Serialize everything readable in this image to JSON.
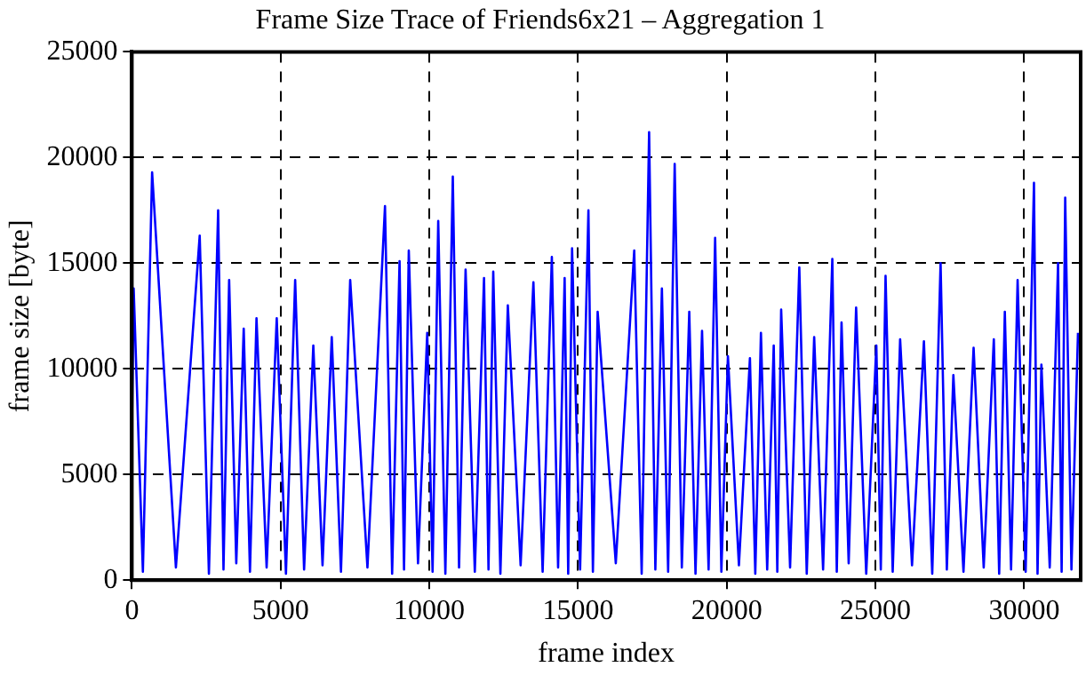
{
  "chart_data": {
    "type": "line",
    "title": "Frame Size Trace of Friends6x21 – Aggregation 1",
    "xlabel": "frame index",
    "ylabel": "frame size [byte]",
    "xlim": [
      0,
      31900
    ],
    "ylim": [
      0,
      25000
    ],
    "xticks": [
      0,
      5000,
      10000,
      15000,
      20000,
      25000,
      30000
    ],
    "yticks": [
      0,
      5000,
      10000,
      15000,
      20000,
      25000
    ],
    "grid": true,
    "legend": false,
    "marker": "none",
    "line_style": "solid",
    "series": [
      {
        "color": "#0000ff",
        "x": [
          0,
          60,
          370,
          680,
          1480,
          2280,
          2590,
          2900,
          3080,
          3270,
          3510,
          3760,
          3970,
          4190,
          4530,
          4870,
          5180,
          5490,
          5790,
          6100,
          6410,
          6720,
          7030,
          7340,
          7920,
          8510,
          8750,
          9000,
          9150,
          9310,
          9620,
          9930,
          10110,
          10300,
          10540,
          10790,
          11000,
          11220,
          11530,
          11840,
          11990,
          12150,
          12390,
          12640,
          13070,
          13500,
          13810,
          14120,
          14330,
          14550,
          14670,
          14800,
          15070,
          15350,
          15500,
          15660,
          16270,
          16890,
          17140,
          17390,
          17600,
          17820,
          18030,
          18250,
          18490,
          18740,
          18950,
          19170,
          19390,
          19610,
          19820,
          20040,
          20410,
          20780,
          20960,
          21150,
          21360,
          21580,
          21700,
          21830,
          22130,
          22440,
          22690,
          22940,
          23240,
          23550,
          23700,
          23860,
          24100,
          24350,
          24690,
          25030,
          25180,
          25340,
          25580,
          25830,
          26230,
          26630,
          26910,
          27190,
          27400,
          27620,
          27960,
          28300,
          28640,
          28980,
          29160,
          29350,
          29560,
          29780,
          30050,
          30330,
          30450,
          30580,
          30860,
          31140,
          31260,
          31380,
          31590,
          31810
        ],
        "values": [
          7000,
          13800,
          400,
          19300,
          600,
          16300,
          300,
          17500,
          500,
          14200,
          800,
          11900,
          400,
          12400,
          600,
          12400,
          300,
          14200,
          500,
          11100,
          700,
          11500,
          400,
          14200,
          600,
          17700,
          300,
          15100,
          500,
          15600,
          800,
          11700,
          400,
          17000,
          300,
          19100,
          600,
          14700,
          400,
          14300,
          500,
          14600,
          300,
          13000,
          700,
          14100,
          400,
          15300,
          600,
          14300,
          300,
          15700,
          500,
          17500,
          400,
          12700,
          800,
          15600,
          300,
          21200,
          500,
          13800,
          400,
          19700,
          600,
          12700,
          300,
          11800,
          500,
          16200,
          400,
          10600,
          700,
          10500,
          300,
          11700,
          500,
          11100,
          400,
          12800,
          600,
          14800,
          300,
          11500,
          500,
          15200,
          400,
          12200,
          800,
          12900,
          300,
          11100,
          500,
          14400,
          400,
          11400,
          700,
          11300,
          300,
          15000,
          500,
          9700,
          400,
          11000,
          600,
          11400,
          300,
          12700,
          500,
          14200,
          400,
          18800,
          300,
          10200,
          600,
          15000,
          400,
          18100,
          500,
          11700
        ]
      }
    ]
  }
}
